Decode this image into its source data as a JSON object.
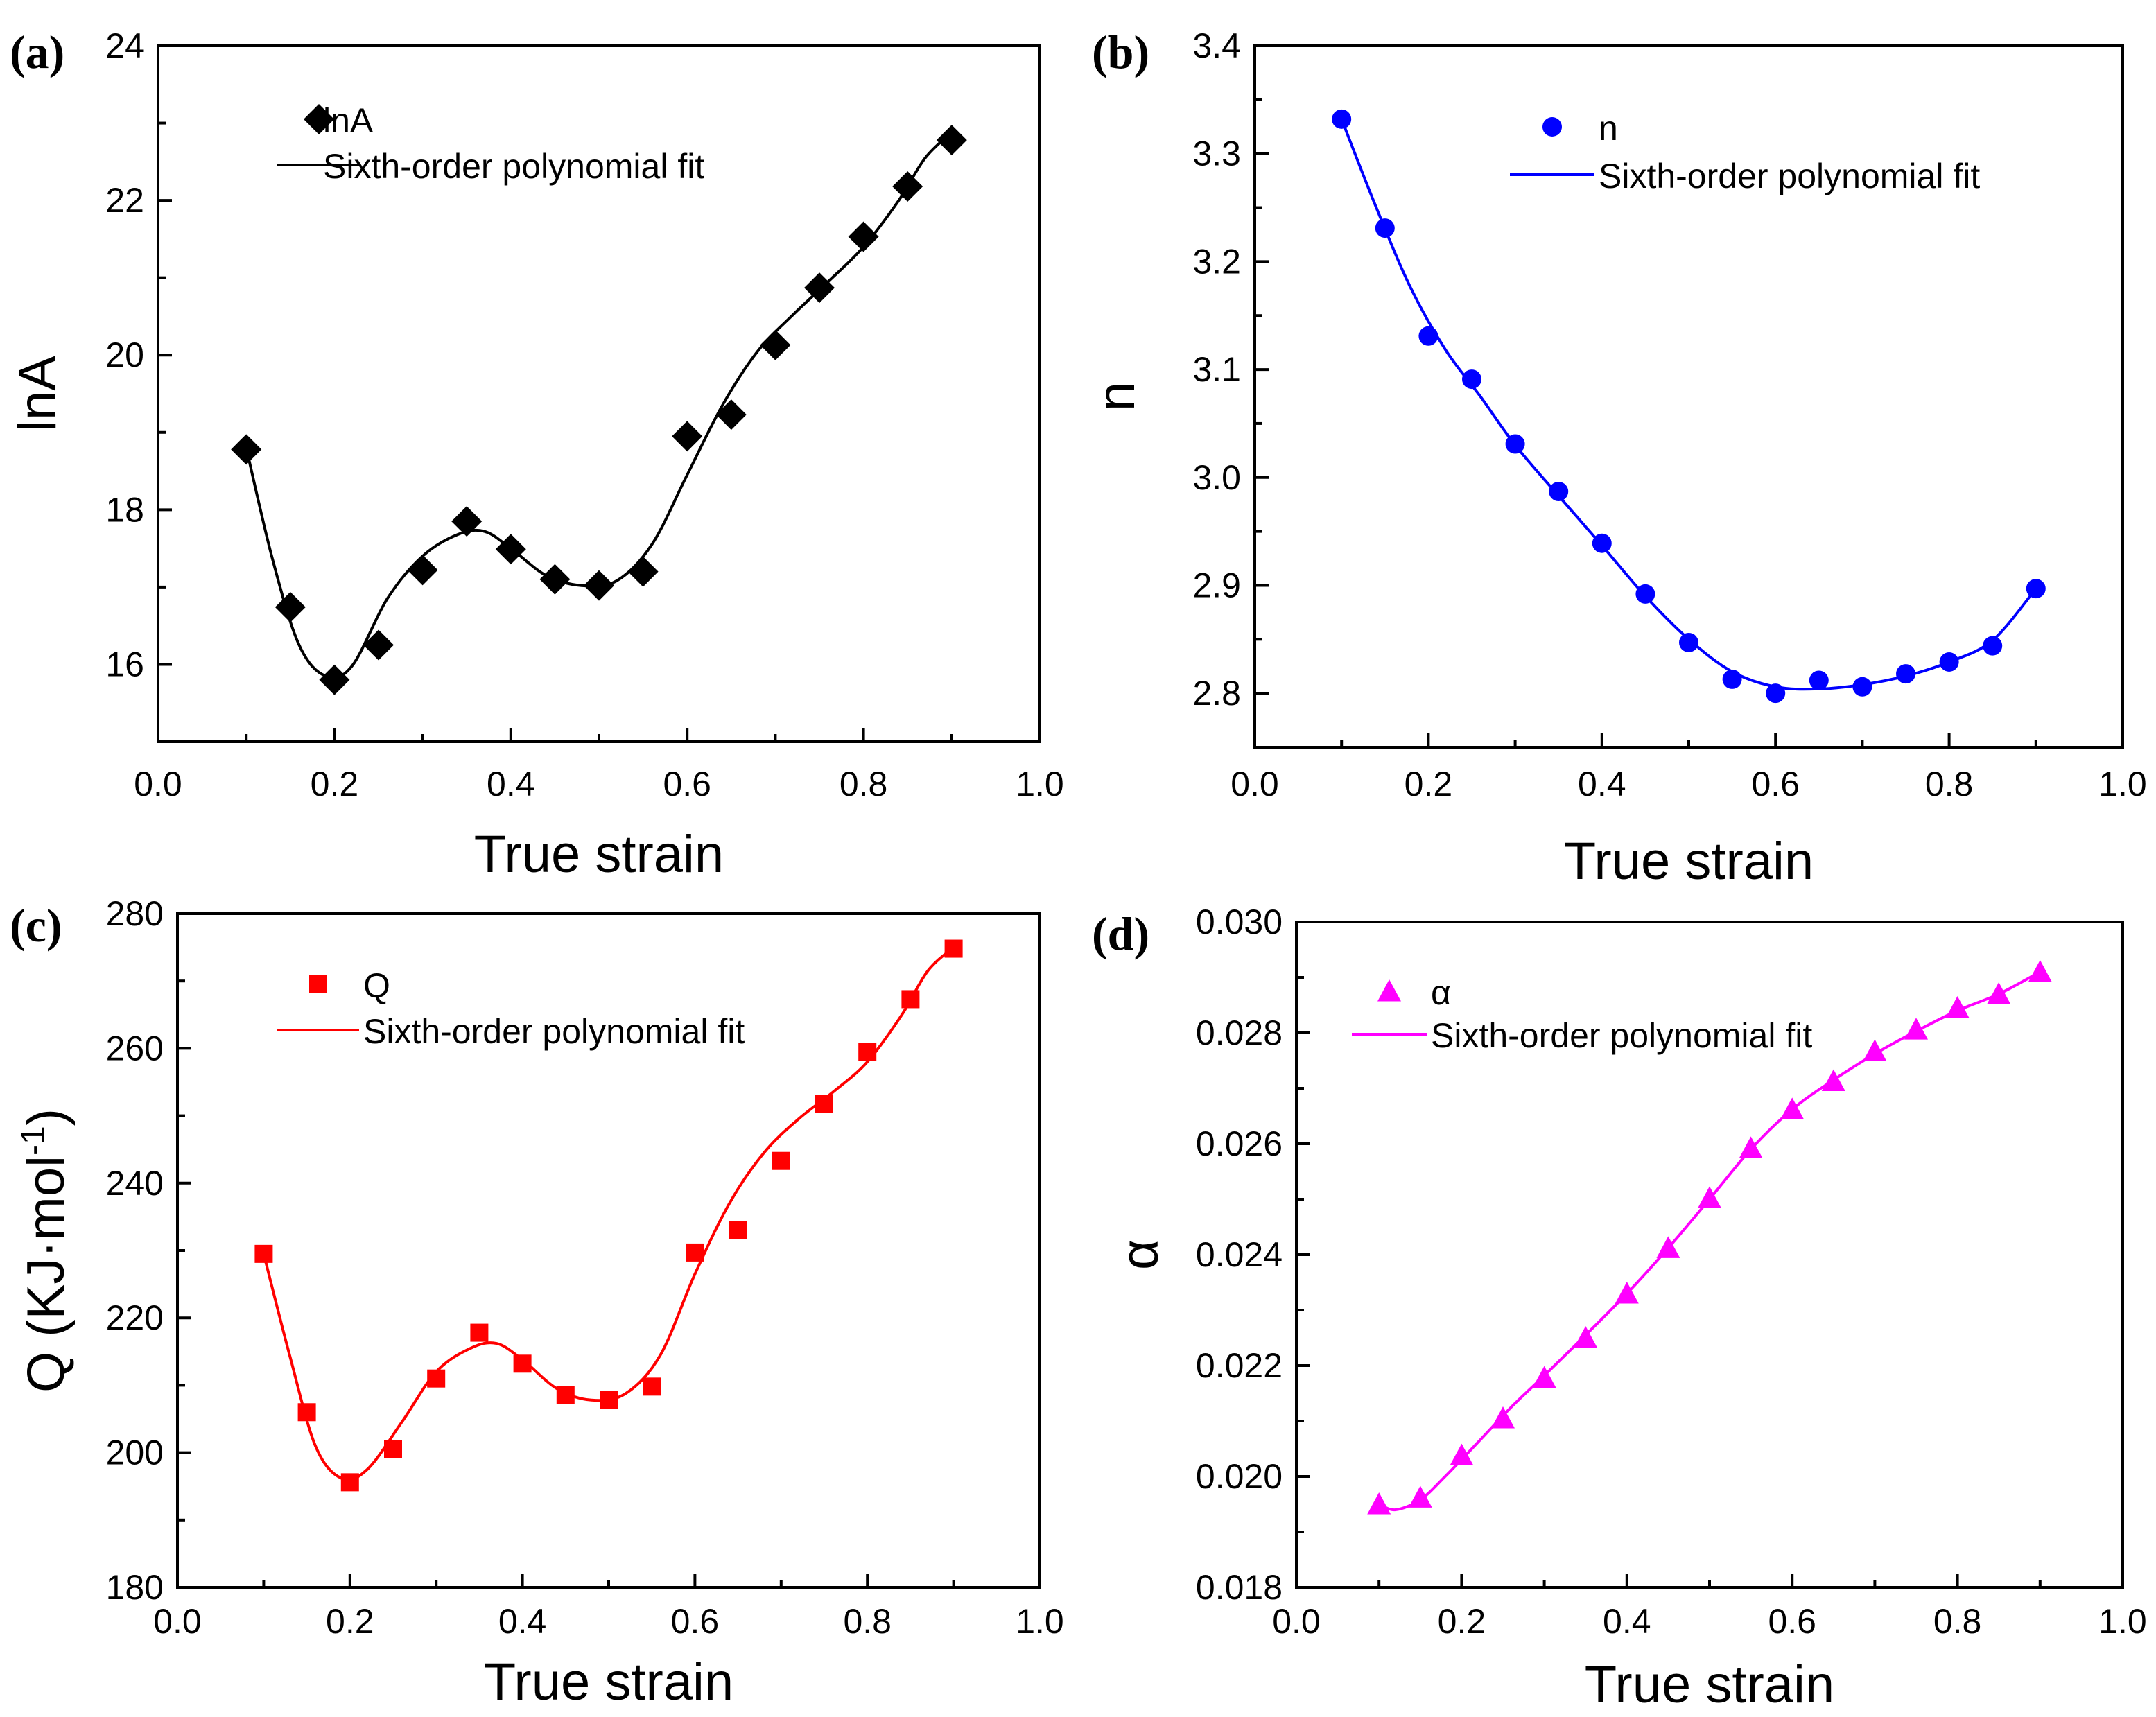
{
  "chart_data": [
    {
      "type": "scatter",
      "panel": "(a)",
      "xlabel": "True strain",
      "ylabel": "lnA",
      "xlim": [
        0.0,
        1.0
      ],
      "ylim": [
        15.0,
        24.0
      ],
      "xticks": [
        "0.0",
        "0.2",
        "0.4",
        "0.6",
        "0.8",
        "1.0"
      ],
      "yticks": [
        "16",
        "18",
        "20",
        "22",
        "24"
      ],
      "color": "#000000",
      "marker": "diamond",
      "legend_position": "top-left",
      "series": [
        {
          "name": "lnA",
          "kind": "points",
          "x": [
            0.1,
            0.15,
            0.2,
            0.25,
            0.3,
            0.35,
            0.4,
            0.45,
            0.5,
            0.55,
            0.6,
            0.65,
            0.7,
            0.75,
            0.8,
            0.85,
            0.9
          ],
          "y": [
            18.78,
            16.74,
            15.8,
            16.25,
            17.22,
            17.85,
            17.49,
            17.1,
            17.02,
            17.2,
            18.95,
            19.23,
            20.13,
            20.87,
            21.53,
            22.18,
            22.78
          ]
        },
        {
          "name": "Sixth-order polynomial fit",
          "kind": "line",
          "x": [
            0.1,
            0.13,
            0.16,
            0.19,
            0.22,
            0.26,
            0.3,
            0.34,
            0.37,
            0.4,
            0.44,
            0.48,
            0.52,
            0.56,
            0.6,
            0.64,
            0.68,
            0.72,
            0.76,
            0.8,
            0.84,
            0.87,
            0.9
          ],
          "y": [
            18.8,
            17.35,
            16.25,
            15.85,
            15.98,
            16.85,
            17.4,
            17.68,
            17.72,
            17.5,
            17.15,
            17.02,
            17.08,
            17.55,
            18.45,
            19.35,
            20.05,
            20.52,
            20.95,
            21.4,
            22.0,
            22.55,
            22.88
          ]
        }
      ]
    },
    {
      "type": "scatter",
      "panel": "(b)",
      "xlabel": "True strain",
      "ylabel": "n",
      "xlim": [
        0.0,
        1.0
      ],
      "ylim": [
        2.75,
        3.4
      ],
      "xticks": [
        "0.0",
        "0.2",
        "0.4",
        "0.6",
        "0.8",
        "1.0"
      ],
      "yticks": [
        "2.8",
        "2.9",
        "3.0",
        "3.1",
        "3.2",
        "3.3",
        "3.4"
      ],
      "color": "#0000FF",
      "marker": "circle",
      "legend_position": "top-center",
      "series": [
        {
          "name": "n",
          "kind": "points",
          "x": [
            0.1,
            0.15,
            0.2,
            0.25,
            0.3,
            0.35,
            0.4,
            0.45,
            0.5,
            0.55,
            0.6,
            0.65,
            0.7,
            0.75,
            0.8,
            0.85,
            0.9
          ],
          "y": [
            3.332,
            3.231,
            3.131,
            3.091,
            3.031,
            2.987,
            2.939,
            2.892,
            2.847,
            2.813,
            2.8,
            2.812,
            2.806,
            2.818,
            2.829,
            2.844,
            2.897
          ]
        },
        {
          "name": "Sixth-order polynomial fit",
          "kind": "line",
          "x": [
            0.1,
            0.14,
            0.18,
            0.22,
            0.26,
            0.3,
            0.35,
            0.4,
            0.45,
            0.5,
            0.55,
            0.6,
            0.65,
            0.7,
            0.75,
            0.8,
            0.85,
            0.9
          ],
          "y": [
            3.332,
            3.25,
            3.175,
            3.118,
            3.075,
            3.03,
            2.983,
            2.937,
            2.89,
            2.85,
            2.82,
            2.806,
            2.804,
            2.808,
            2.816,
            2.829,
            2.849,
            2.897
          ]
        }
      ]
    },
    {
      "type": "scatter",
      "panel": "(c)",
      "xlabel": "True strain",
      "ylabel": "Q (KJ·mol",
      "ylabel_sup": "-1",
      "ylabel_close": ")",
      "xlim": [
        0.0,
        1.0
      ],
      "ylim": [
        180,
        280
      ],
      "xticks": [
        "0.0",
        "0.2",
        "0.4",
        "0.6",
        "0.8",
        "1.0"
      ],
      "yticks": [
        "180",
        "200",
        "220",
        "240",
        "260",
        "280"
      ],
      "color": "#FF0000",
      "marker": "square",
      "legend_position": "top-left",
      "series": [
        {
          "name": "Q",
          "kind": "points",
          "x": [
            0.1,
            0.15,
            0.2,
            0.25,
            0.3,
            0.35,
            0.4,
            0.45,
            0.5,
            0.55,
            0.6,
            0.65,
            0.7,
            0.75,
            0.8,
            0.85,
            0.9
          ],
          "y": [
            229.5,
            206.0,
            195.6,
            200.5,
            211.0,
            217.8,
            213.2,
            208.5,
            207.8,
            209.8,
            229.7,
            233.0,
            243.3,
            251.8,
            259.5,
            267.3,
            274.8
          ]
        },
        {
          "name": "Sixth-order polynomial fit",
          "kind": "line",
          "x": [
            0.1,
            0.13,
            0.16,
            0.19,
            0.22,
            0.26,
            0.3,
            0.34,
            0.37,
            0.4,
            0.44,
            0.48,
            0.52,
            0.56,
            0.6,
            0.64,
            0.68,
            0.72,
            0.76,
            0.8,
            0.84,
            0.87,
            0.9
          ],
          "y": [
            229.5,
            214.5,
            201.0,
            196.2,
            197.5,
            204.5,
            212.0,
            215.5,
            216.2,
            213.8,
            209.5,
            207.8,
            208.8,
            214.5,
            226.5,
            237.0,
            244.5,
            249.5,
            253.5,
            258.0,
            265.0,
            271.5,
            275.0
          ]
        }
      ]
    },
    {
      "type": "scatter",
      "panel": "(d)",
      "xlabel": "True strain",
      "ylabel": "α",
      "xlim": [
        0.0,
        1.0
      ],
      "ylim": [
        0.018,
        0.03
      ],
      "xticks": [
        "0.0",
        "0.2",
        "0.4",
        "0.6",
        "0.8",
        "1.0"
      ],
      "yticks": [
        "0.018",
        "0.020",
        "0.022",
        "0.024",
        "0.026",
        "0.028",
        "0.030"
      ],
      "color": "#FF00FF",
      "marker": "triangle",
      "legend_position": "top-left",
      "series": [
        {
          "name": "α",
          "kind": "points",
          "x": [
            0.1,
            0.15,
            0.2,
            0.25,
            0.3,
            0.35,
            0.4,
            0.45,
            0.5,
            0.55,
            0.6,
            0.65,
            0.7,
            0.75,
            0.8,
            0.85,
            0.9
          ],
          "y": [
            0.0195,
            0.01962,
            0.02038,
            0.02105,
            0.02178,
            0.0225,
            0.0233,
            0.02412,
            0.02502,
            0.02592,
            0.02662,
            0.02713,
            0.02767,
            0.02806,
            0.02845,
            0.0287,
            0.0291
          ]
        },
        {
          "name": "Sixth-order polynomial fit",
          "kind": "line",
          "x": [
            0.1,
            0.12,
            0.15,
            0.18,
            0.22,
            0.26,
            0.3,
            0.35,
            0.4,
            0.45,
            0.5,
            0.55,
            0.6,
            0.65,
            0.7,
            0.75,
            0.8,
            0.85,
            0.9
          ],
          "y": [
            0.0195,
            0.0194,
            0.01958,
            0.02,
            0.02062,
            0.02125,
            0.02182,
            0.02255,
            0.0233,
            0.02412,
            0.025,
            0.0259,
            0.02662,
            0.02715,
            0.02762,
            0.02803,
            0.0284,
            0.0287,
            0.0291
          ]
        }
      ]
    }
  ]
}
